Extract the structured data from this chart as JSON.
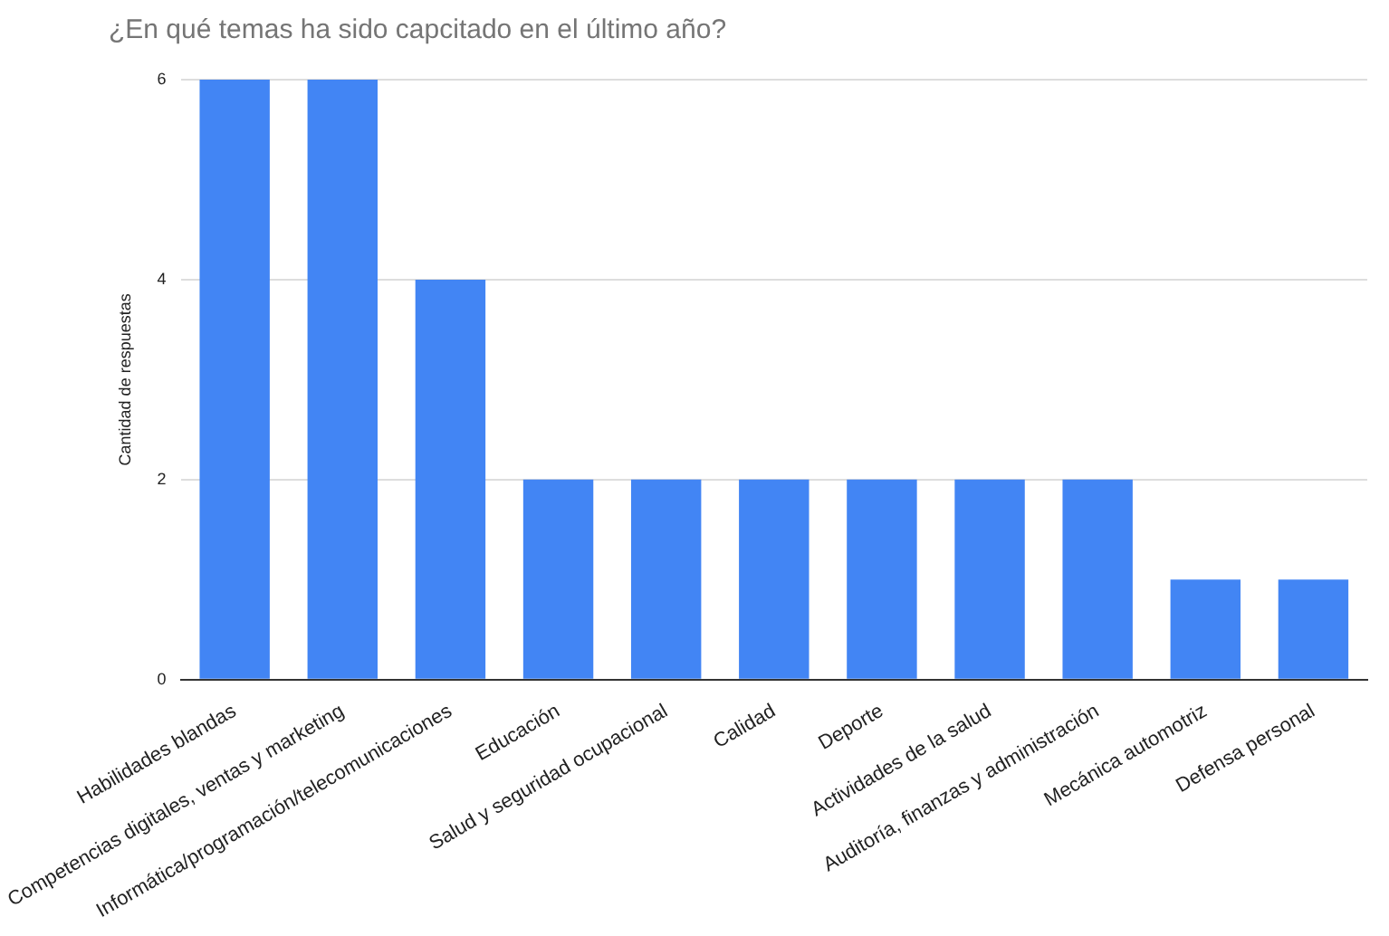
{
  "chart_data": {
    "type": "bar",
    "title": "¿En qué temas ha sido capcitado en el último año?",
    "ylabel": "Cantidad de respuestas",
    "categories": [
      "Habilidades blandas",
      "Competencias digitales, ventas y marketing",
      "Informática/programación/telecomunicaciones",
      "Educación",
      "Salud y seguridad ocupacional",
      "Calidad",
      "Deporte",
      "Actividades de la salud",
      "Auditoría, finanzas y administración",
      "Mecánica automotriz",
      "Defensa personal"
    ],
    "values": [
      6,
      6,
      4,
      2,
      2,
      2,
      2,
      2,
      2,
      1,
      1
    ],
    "color": "#4285f4",
    "ylim": [
      0,
      6
    ],
    "yticks": [
      0,
      2,
      4,
      6
    ],
    "grid": "y",
    "legend": false
  }
}
